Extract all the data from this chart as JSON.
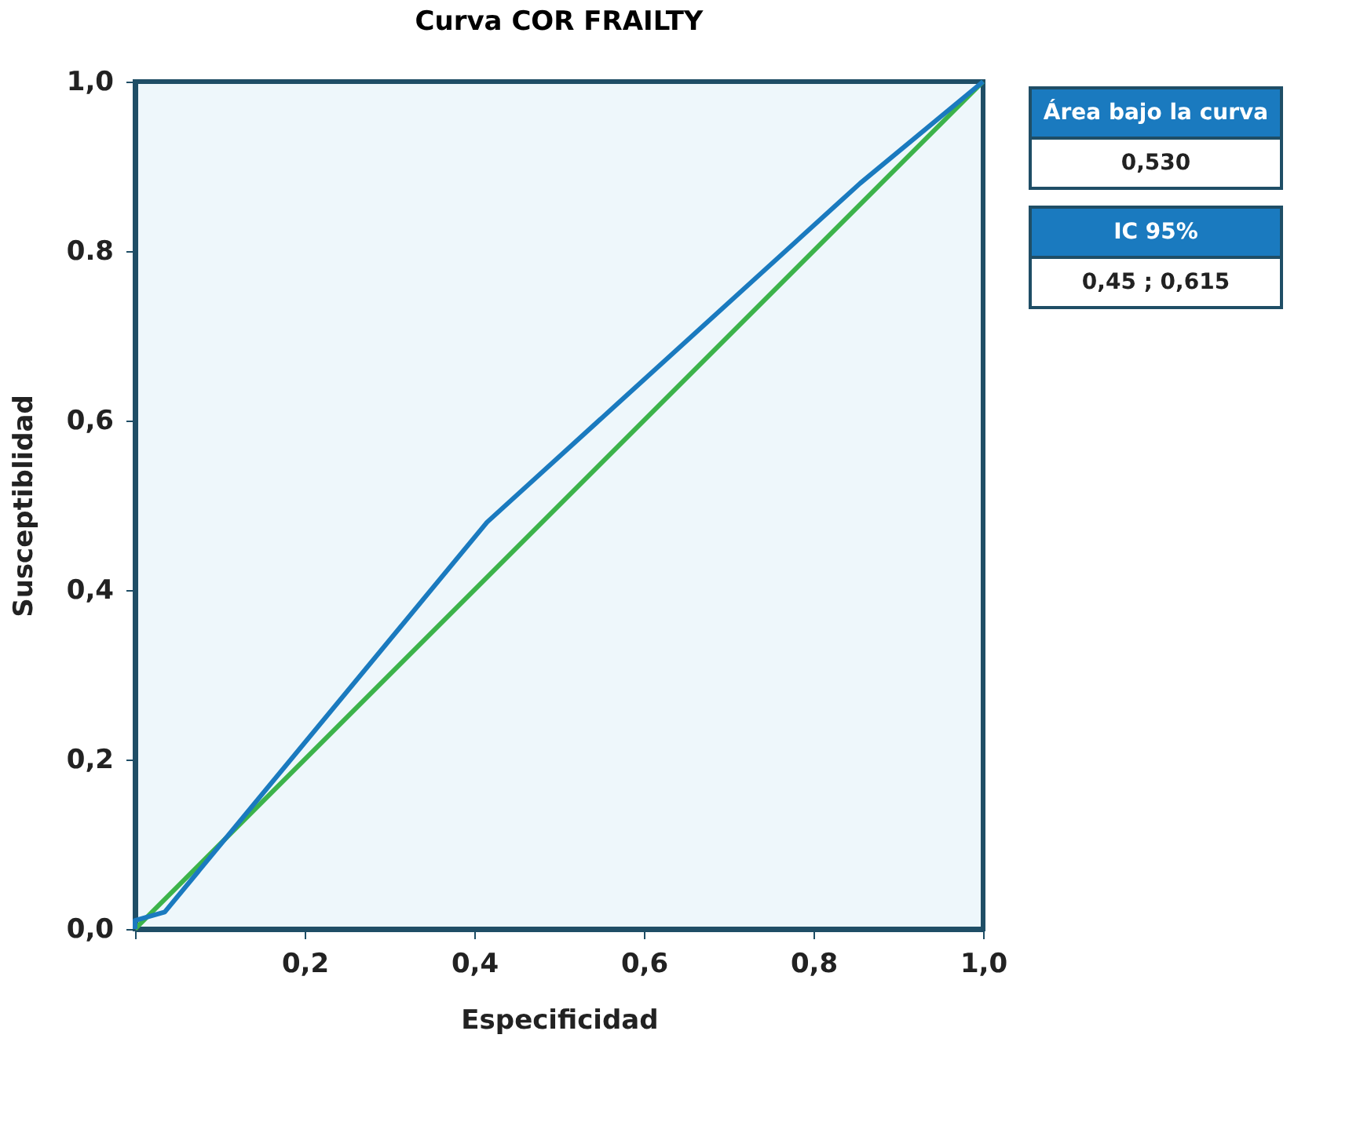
{
  "chart_data": {
    "type": "line",
    "title": "Curva COR FRAILTY",
    "xlabel": "Especificidad",
    "ylabel": "Susceptiblidad",
    "xlim": [
      0,
      1
    ],
    "ylim": [
      0,
      1
    ],
    "xticks": [
      {
        "value": 0,
        "label": null
      },
      {
        "value": 0.2,
        "label": "0,2"
      },
      {
        "value": 0.4,
        "label": "0,4"
      },
      {
        "value": 0.6,
        "label": "0,6"
      },
      {
        "value": 0.8,
        "label": "0,8"
      },
      {
        "value": 1,
        "label": "1,0"
      }
    ],
    "yticks": [
      {
        "value": 0,
        "label": "0,0"
      },
      {
        "value": 0.2,
        "label": "0,2"
      },
      {
        "value": 0.4,
        "label": "0,4"
      },
      {
        "value": 0.6,
        "label": "0,6"
      },
      {
        "value": 0.8,
        "label": "0.8"
      },
      {
        "value": 1,
        "label": "1,0"
      }
    ],
    "series": [
      {
        "color": "#3cb34a",
        "x": [
          0,
          1
        ],
        "values": [
          0,
          1
        ]
      },
      {
        "color": "#1a7abf",
        "x": [
          0,
          0,
          0.035,
          0.415,
          0.855,
          1
        ],
        "values": [
          0,
          0.01,
          0.02,
          0.48,
          0.88,
          1
        ]
      }
    ],
    "annotations": [
      "Área bajo la curva",
      "0,530",
      "IC 95%",
      "0,45 ; 0,615"
    ],
    "grid": false,
    "marker": "none",
    "line_style": "solid"
  }
}
